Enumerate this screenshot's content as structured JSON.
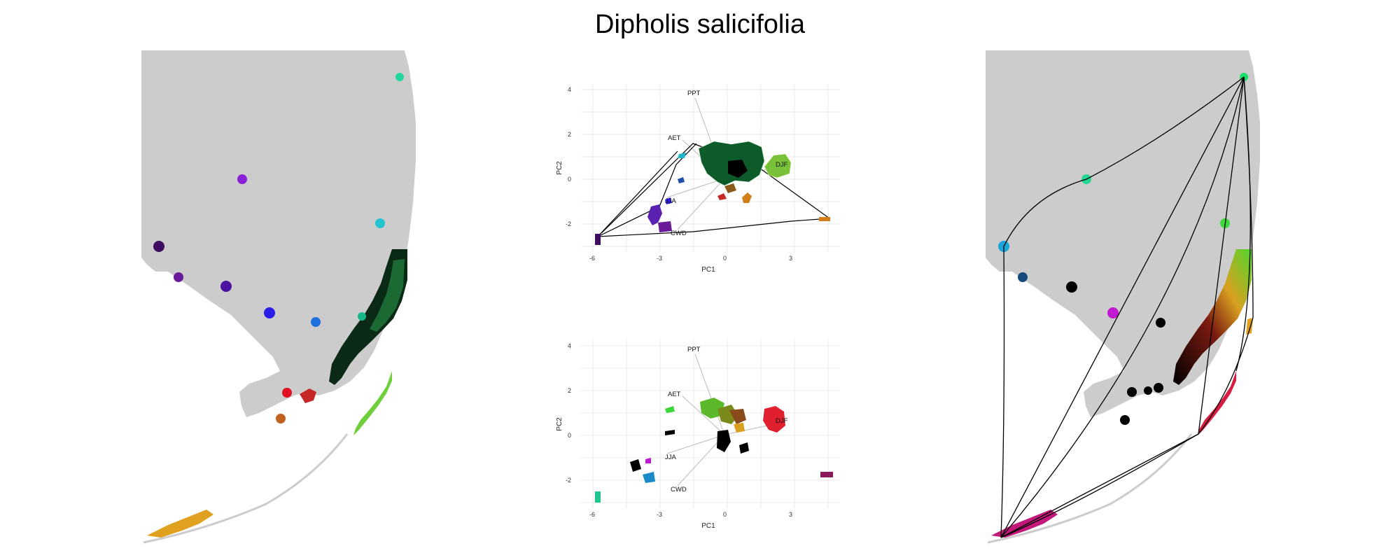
{
  "title": "Dipholis salicifolia",
  "panels": {
    "pca_top": {
      "xlabel": "PC1",
      "ylabel": "PC2",
      "x_ticks": [
        "-6",
        "-3",
        "0",
        "3"
      ],
      "y_ticks": [
        "4",
        "2",
        "0",
        "-2"
      ],
      "variables": [
        "PPT",
        "AET",
        "DJF",
        "JJA",
        "CWD"
      ]
    },
    "pca_bottom": {
      "xlabel": "PC1",
      "ylabel": "PC2",
      "x_ticks": [
        "-6",
        "-3",
        "0",
        "3"
      ],
      "y_ticks": [
        "4",
        "2",
        "0",
        "-2"
      ],
      "variables": [
        "PPT",
        "AET",
        "DJF",
        "JJA",
        "CWD"
      ]
    }
  },
  "colors": {
    "land": "#cccccc",
    "grid": "#ebebeb",
    "hull": "#000000",
    "loading": "#bbbbbb"
  }
}
